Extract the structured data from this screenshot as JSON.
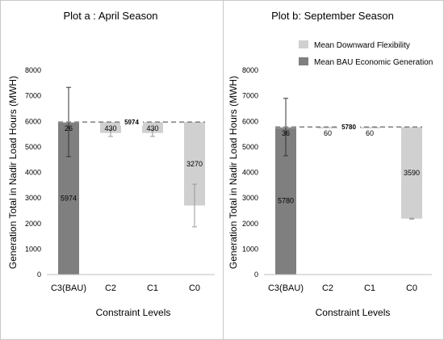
{
  "chart_data": [
    {
      "type": "bar",
      "title": "Plot a : April Season",
      "xlabel": "Constraint Levels",
      "ylabel": "Generation Total in Nadir Load Hours (MWH)",
      "ylim": [
        0,
        8000
      ],
      "yticks": [
        "0",
        "1000",
        "2000",
        "3000",
        "4000",
        "5000",
        "6000",
        "7000",
        "8000"
      ],
      "grid": false,
      "legend": "none",
      "categories": [
        "C3(BAU)",
        "C2",
        "C1",
        "C0"
      ],
      "reference_line": {
        "value": 5974,
        "label": "5974",
        "style": "dashed"
      },
      "series": [
        {
          "name": "Mean BAU Economic Generation",
          "color": "#7f7f7f",
          "bars": [
            {
              "category": "C3(BAU)",
              "bottom": 0,
              "top": 5974,
              "label": "5974",
              "error_low": 4620,
              "error_high": 7330
            }
          ]
        },
        {
          "name": "Mean Downward Flexibility",
          "color": "#d0d0d0",
          "bars": [
            {
              "category": "C3(BAU)",
              "bottom": 5948,
              "top": 5974,
              "label": "26",
              "error_low": null,
              "error_high": null
            },
            {
              "category": "C2",
              "bottom": 5544,
              "top": 5974,
              "label": "430",
              "error_low": 5410,
              "error_high": 5680
            },
            {
              "category": "C1",
              "bottom": 5544,
              "top": 5974,
              "label": "430",
              "error_low": 5410,
              "error_high": 5680
            },
            {
              "category": "C0",
              "bottom": 2704,
              "top": 5974,
              "label": "3270",
              "error_low": 1870,
              "error_high": 3540
            }
          ]
        }
      ]
    },
    {
      "type": "bar",
      "title": "Plot b: September Season",
      "xlabel": "Constraint Levels",
      "ylabel": "Generation Total in Nadir Load Hours (MWH)",
      "ylim": [
        0,
        8000
      ],
      "yticks": [
        "0",
        "1000",
        "2000",
        "3000",
        "4000",
        "5000",
        "6000",
        "7000",
        "8000"
      ],
      "grid": false,
      "legend": "top-right",
      "categories": [
        "C3(BAU)",
        "C2",
        "C1",
        "C0"
      ],
      "reference_line": {
        "value": 5780,
        "label": "5780",
        "style": "dashed"
      },
      "series": [
        {
          "name": "Mean BAU Economic Generation",
          "color": "#7f7f7f",
          "bars": [
            {
              "category": "C3(BAU)",
              "bottom": 0,
              "top": 5780,
              "label": "5780",
              "error_low": 4650,
              "error_high": 6900
            }
          ]
        },
        {
          "name": "Mean Downward Flexibility",
          "color": "#d0d0d0",
          "bars": [
            {
              "category": "C3(BAU)",
              "bottom": 5744,
              "top": 5780,
              "label": "36",
              "error_low": null,
              "error_high": null
            },
            {
              "category": "C2",
              "bottom": 5720,
              "top": 5780,
              "label": "60",
              "error_low": null,
              "error_high": null
            },
            {
              "category": "C1",
              "bottom": 5720,
              "top": 5780,
              "label": "60",
              "error_low": null,
              "error_high": null
            },
            {
              "category": "C0",
              "bottom": 2190,
              "top": 5780,
              "label": "3590",
              "error_low": 2170,
              "error_high": 2210
            }
          ]
        }
      ]
    }
  ],
  "legend_items": [
    {
      "label": "Mean Downward Flexibility",
      "color": "#d0d0d0"
    },
    {
      "label": "Mean BAU Economic Generation",
      "color": "#7f7f7f"
    }
  ]
}
